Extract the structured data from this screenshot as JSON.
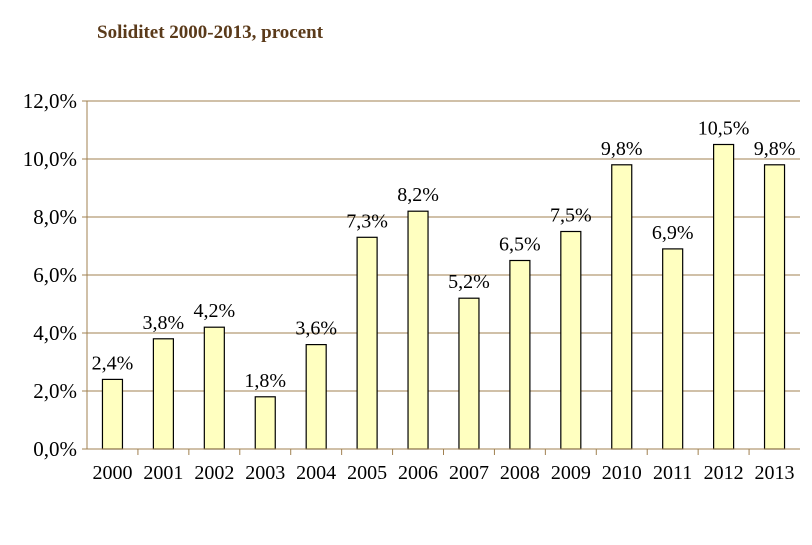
{
  "chart_data": {
    "type": "bar",
    "title": "Soliditet 2000-2013, procent",
    "xlabel": "",
    "ylabel": "",
    "categories": [
      "2000",
      "2001",
      "2002",
      "2003",
      "2004",
      "2005",
      "2006",
      "2007",
      "2008",
      "2009",
      "2010",
      "2011",
      "2012",
      "2013"
    ],
    "values": [
      2.4,
      3.8,
      4.2,
      1.8,
      3.6,
      7.3,
      8.2,
      5.2,
      6.5,
      7.5,
      9.8,
      6.9,
      10.5,
      9.8
    ],
    "data_labels": [
      "2,4%",
      "3,8%",
      "4,2%",
      "1,8%",
      "3,6%",
      "7,3%",
      "8,2%",
      "5,2%",
      "6,5%",
      "7,5%",
      "9,8%",
      "6,9%",
      "10,5%",
      "9,8%"
    ],
    "ylim": [
      0,
      12
    ],
    "y_ticks": [
      0,
      2,
      4,
      6,
      8,
      10,
      12
    ],
    "y_tick_labels": [
      "0,0%",
      "2,0%",
      "4,0%",
      "6,0%",
      "8,0%",
      "10,0%",
      "12,0%"
    ],
    "grid": true,
    "legend": "none",
    "colors": {
      "bar_fill": "#ffffc0",
      "bar_stroke": "#000000",
      "grid": "#a08050",
      "axis": "#a08050",
      "title": "#5a3a1a"
    }
  }
}
